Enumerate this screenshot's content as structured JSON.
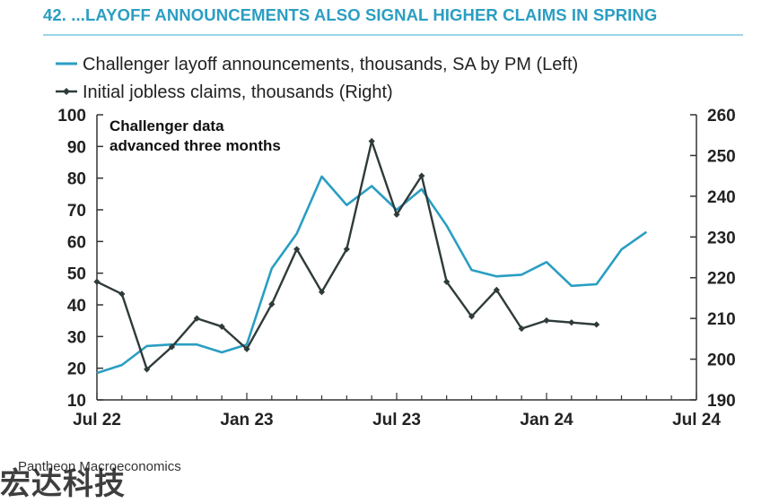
{
  "header": {
    "title": "42.  ...LAYOFF ANNOUNCEMENTS ALSO SIGNAL HIGHER CLAIMS IN SPRING"
  },
  "footer": {
    "source": "Pantheon Macroeconomics",
    "watermark": "宏达科技"
  },
  "colors": {
    "title": "#2a9ec2",
    "challenger": "#2a9ec2",
    "claims": "#2f3b3a",
    "rule": "#9dd6e6"
  },
  "chart_data": {
    "type": "line",
    "annotation": [
      "Challenger data",
      "advanced three months"
    ],
    "legend_position": "top-left",
    "grid": false,
    "x_range": [
      "2022-07",
      "2024-07"
    ],
    "x_ticks": [
      "Jul 22",
      "Jan 23",
      "Jul 23",
      "Jan 24",
      "Jul 24"
    ],
    "y_left": {
      "range": [
        10,
        100
      ],
      "ticks": [
        "10",
        "20",
        "30",
        "40",
        "50",
        "60",
        "70",
        "80",
        "90",
        "100"
      ]
    },
    "y_right": {
      "range": [
        190,
        260
      ],
      "ticks": [
        "190",
        "200",
        "210",
        "220",
        "230",
        "240",
        "250",
        "260"
      ]
    },
    "series": [
      {
        "name": "Challenger layoff announcements, thousands, SA by PM (Left)",
        "axis": "left",
        "marker": "none",
        "x": [
          "2022-07",
          "2022-08",
          "2022-09",
          "2022-10",
          "2022-11",
          "2022-12",
          "2023-01",
          "2023-02",
          "2023-03",
          "2023-04",
          "2023-05",
          "2023-06",
          "2023-07",
          "2023-08",
          "2023-09",
          "2023-10",
          "2023-11",
          "2023-12",
          "2024-01",
          "2024-02",
          "2024-03",
          "2024-04",
          "2024-05"
        ],
        "y": [
          18.5,
          21,
          27,
          27.5,
          27.5,
          25,
          27.5,
          51.5,
          62.5,
          80.5,
          71.5,
          77.5,
          70,
          76.5,
          65,
          51,
          49,
          49.5,
          53.5,
          46,
          46.5,
          57.5,
          63
        ]
      },
      {
        "name": "Initial jobless claims, thousands (Right)",
        "axis": "right",
        "marker": "diamond",
        "x": [
          "2022-07",
          "2022-08",
          "2022-09",
          "2022-10",
          "2022-11",
          "2022-12",
          "2023-01",
          "2023-02",
          "2023-03",
          "2023-04",
          "2023-05",
          "2023-06",
          "2023-07",
          "2023-08",
          "2023-09",
          "2023-10",
          "2023-11",
          "2023-12",
          "2024-01",
          "2024-02",
          "2024-03"
        ],
        "y": [
          219,
          216,
          197.5,
          203,
          210,
          208,
          202.5,
          213.5,
          227,
          216.5,
          227,
          253.5,
          235.5,
          245,
          219,
          210.5,
          217,
          207.5,
          209.5,
          209,
          208.5
        ]
      }
    ]
  }
}
